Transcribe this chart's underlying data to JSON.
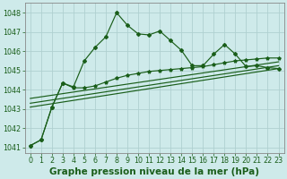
{
  "xlabel": "Graphe pression niveau de la mer (hPa)",
  "bg_color": "#ceeaea",
  "grid_color": "#afd0d0",
  "line_color": "#1a5e1a",
  "ylim": [
    1040.7,
    1048.5
  ],
  "xlim": [
    -0.5,
    23.5
  ],
  "yticks": [
    1041,
    1042,
    1043,
    1044,
    1045,
    1046,
    1047,
    1048
  ],
  "xticks": [
    0,
    1,
    2,
    3,
    4,
    5,
    6,
    7,
    8,
    9,
    10,
    11,
    12,
    13,
    14,
    15,
    16,
    17,
    18,
    19,
    20,
    21,
    22,
    23
  ],
  "series1_x": [
    0,
    1,
    2,
    3,
    4,
    5,
    6,
    7,
    8,
    9,
    10,
    11,
    12,
    13,
    14,
    15,
    16,
    17,
    18,
    19,
    20,
    21,
    22,
    23
  ],
  "series1_y": [
    1041.1,
    1041.4,
    1043.1,
    1044.35,
    1044.15,
    1045.5,
    1046.2,
    1046.75,
    1048.0,
    1047.35,
    1046.9,
    1046.85,
    1047.05,
    1046.55,
    1046.05,
    1045.25,
    1045.25,
    1045.85,
    1046.35,
    1045.85,
    1045.2,
    1045.25,
    1045.15,
    1045.1
  ],
  "series2_x": [
    0,
    1,
    2,
    3,
    4,
    5,
    6,
    7,
    8,
    9,
    10,
    11,
    12,
    13,
    14,
    15,
    16,
    17,
    18,
    19,
    20,
    21,
    22,
    23
  ],
  "series2_y": [
    1041.1,
    1041.4,
    1043.1,
    1044.35,
    1044.1,
    1044.1,
    1044.2,
    1044.4,
    1044.6,
    1044.75,
    1044.85,
    1044.95,
    1045.0,
    1045.05,
    1045.1,
    1045.15,
    1045.2,
    1045.3,
    1045.4,
    1045.5,
    1045.55,
    1045.6,
    1045.65,
    1045.65
  ],
  "trend1_x": [
    0,
    23
  ],
  "trend1_y": [
    1043.1,
    1045.1
  ],
  "trend2_x": [
    0,
    23
  ],
  "trend2_y": [
    1043.3,
    1045.25
  ],
  "trend3_x": [
    0,
    23
  ],
  "trend3_y": [
    1043.55,
    1045.45
  ],
  "xlabel_fontsize": 7.5,
  "tick_fontsize": 5.8
}
